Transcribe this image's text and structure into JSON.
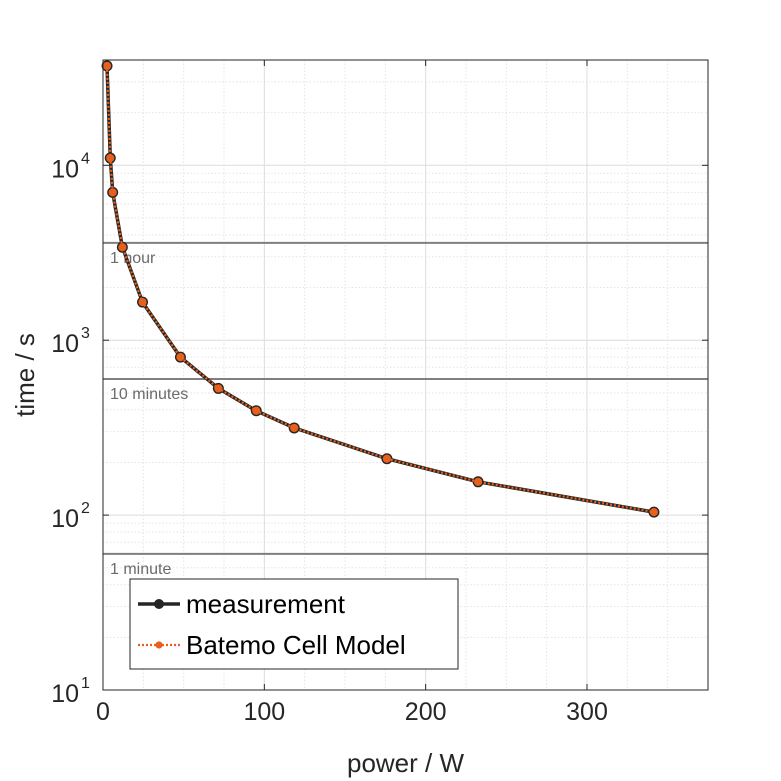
{
  "chart_data": {
    "type": "line",
    "xlabel": "power / W",
    "ylabel": "time / s",
    "xlim": [
      0,
      375
    ],
    "ylim": [
      10,
      40000
    ],
    "y_scale": "log",
    "grid": true,
    "x_ticks": [
      0,
      100,
      200,
      300
    ],
    "y_ticks": [
      {
        "base": "10",
        "exp": "1",
        "value": 10
      },
      {
        "base": "10",
        "exp": "2",
        "value": 100
      },
      {
        "base": "10",
        "exp": "3",
        "value": 1000
      },
      {
        "base": "10",
        "exp": "4",
        "value": 10000
      }
    ],
    "reference_lines": [
      {
        "label": "1 hour",
        "value": 3600
      },
      {
        "label": "10 minutes",
        "value": 600
      },
      {
        "label": "1 minute",
        "value": 60
      }
    ],
    "legend_position": "bottom-left",
    "series": [
      {
        "name": "measurement",
        "color": "#262626",
        "line_style": "solid",
        "marker": "circle",
        "x": [
          2.5,
          4.5,
          6,
          12,
          24.5,
          48,
          71.5,
          95,
          118.5,
          176,
          232.5,
          341.5
        ],
        "y": [
          37000,
          11000,
          7000,
          3400,
          1650,
          800,
          530,
          395,
          315,
          210,
          155,
          104
        ]
      },
      {
        "name": "Batemo Cell Model",
        "color": "#e8601c",
        "line_style": "dotted",
        "marker": "circle",
        "x": [
          2.5,
          4.5,
          6,
          12,
          24.5,
          48,
          71.5,
          95,
          118.5,
          176,
          232.5,
          341.5
        ],
        "y": [
          37000,
          11000,
          7000,
          3400,
          1650,
          800,
          530,
          395,
          315,
          210,
          155,
          104
        ]
      }
    ]
  }
}
